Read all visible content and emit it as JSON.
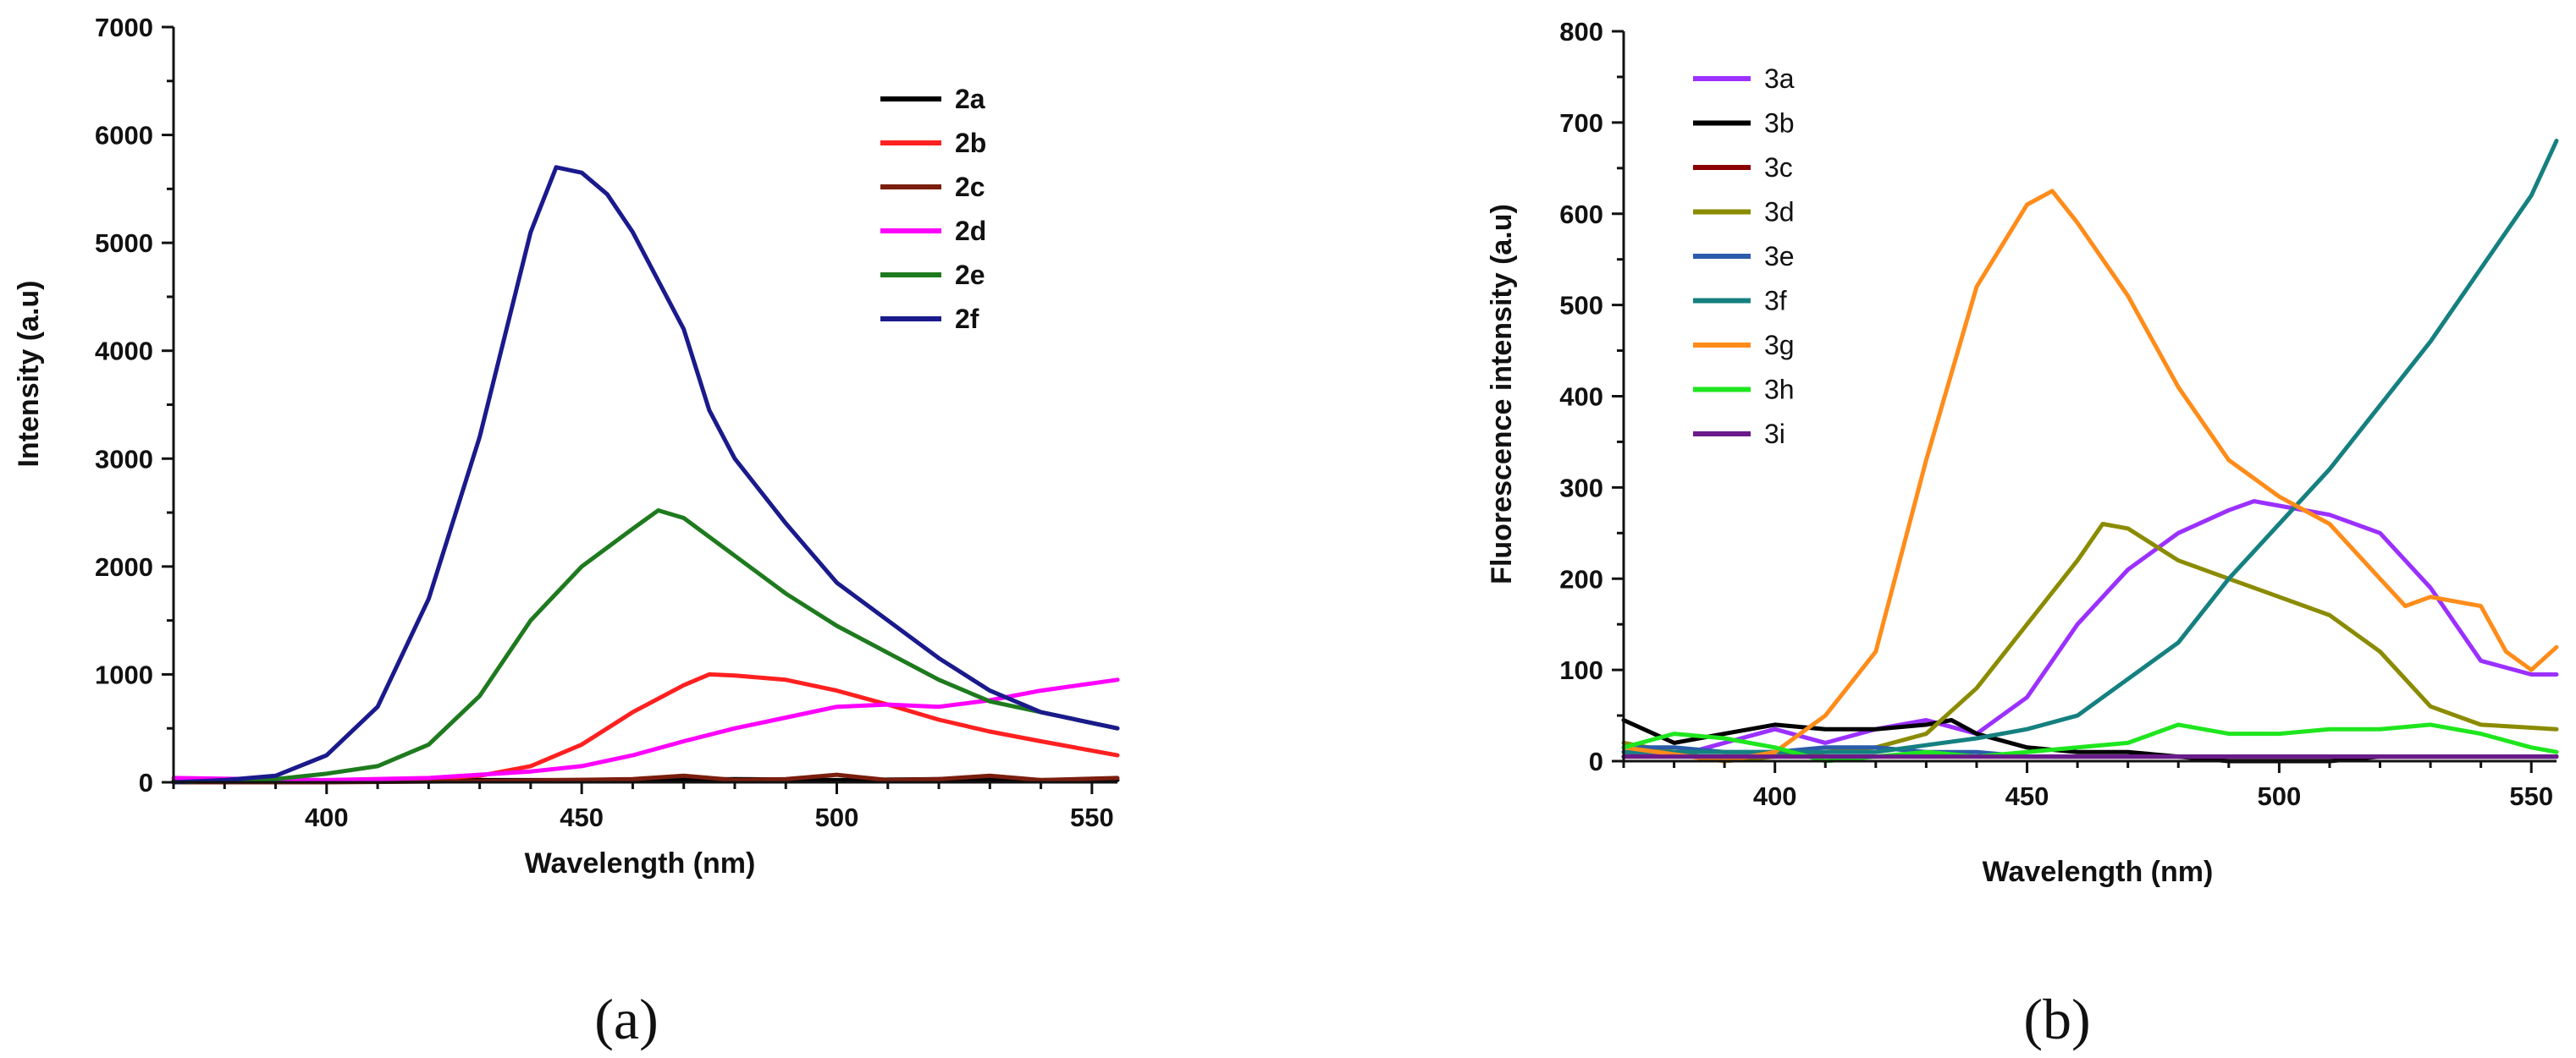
{
  "figure": {
    "panel_a_label": "(a)",
    "panel_b_label": "(b)"
  },
  "chart_data": [
    {
      "type": "line",
      "panel": "a",
      "title": "",
      "xlabel": "Wavelength (nm)",
      "ylabel": "Intensity (a.u)",
      "xlim": [
        370,
        555
      ],
      "ylim": [
        0,
        7000
      ],
      "xticks": [
        400,
        450,
        500,
        550
      ],
      "yticks": [
        0,
        1000,
        2000,
        3000,
        4000,
        5000,
        6000,
        7000
      ],
      "legend_position": "top-right",
      "series": [
        {
          "name": "2a",
          "color": "#000000",
          "x": [
            370,
            400,
            430,
            460,
            480,
            500,
            520,
            540,
            555
          ],
          "y": [
            10,
            10,
            20,
            20,
            30,
            20,
            30,
            20,
            20
          ]
        },
        {
          "name": "2b",
          "color": "#ff2020",
          "x": [
            370,
            400,
            420,
            430,
            440,
            450,
            460,
            470,
            475,
            480,
            490,
            500,
            510,
            520,
            530,
            540,
            555
          ],
          "y": [
            0,
            10,
            30,
            60,
            150,
            350,
            650,
            900,
            1000,
            990,
            950,
            850,
            720,
            580,
            470,
            380,
            250
          ]
        },
        {
          "name": "2c",
          "color": "#7a1e0e",
          "x": [
            370,
            400,
            430,
            460,
            470,
            480,
            490,
            500,
            510,
            520,
            530,
            540,
            555
          ],
          "y": [
            0,
            0,
            10,
            30,
            60,
            20,
            30,
            70,
            20,
            30,
            60,
            20,
            40
          ]
        },
        {
          "name": "2d",
          "color": "#ff00ff",
          "x": [
            370,
            400,
            420,
            440,
            450,
            460,
            470,
            480,
            490,
            500,
            510,
            520,
            530,
            540,
            555
          ],
          "y": [
            40,
            20,
            40,
            100,
            150,
            250,
            380,
            500,
            600,
            700,
            720,
            700,
            760,
            850,
            950
          ]
        },
        {
          "name": "2e",
          "color": "#1e7a1e",
          "x": [
            370,
            390,
            400,
            410,
            420,
            430,
            440,
            450,
            460,
            465,
            470,
            480,
            490,
            500,
            510,
            520,
            530,
            540,
            555
          ],
          "y": [
            0,
            30,
            80,
            150,
            350,
            800,
            1500,
            2000,
            2350,
            2520,
            2450,
            2100,
            1750,
            1450,
            1200,
            950,
            750,
            650,
            500
          ]
        },
        {
          "name": "2f",
          "color": "#1a1a8c",
          "x": [
            370,
            380,
            390,
            400,
            410,
            420,
            430,
            440,
            445,
            450,
            455,
            460,
            470,
            475,
            480,
            490,
            500,
            510,
            520,
            530,
            540,
            555
          ],
          "y": [
            0,
            20,
            60,
            250,
            700,
            1700,
            3200,
            5100,
            5700,
            5650,
            5450,
            5100,
            4200,
            3450,
            3000,
            2400,
            1850,
            1500,
            1150,
            850,
            650,
            500
          ]
        }
      ]
    },
    {
      "type": "line",
      "panel": "b",
      "title": "",
      "xlabel": "Wavelength (nm)",
      "ylabel": "Fluorescence intensity (a.u)",
      "xlim": [
        370,
        555
      ],
      "ylim": [
        0,
        800
      ],
      "xticks": [
        400,
        450,
        500,
        550
      ],
      "yticks": [
        0,
        100,
        200,
        300,
        400,
        500,
        600,
        700,
        800
      ],
      "legend_position": "top-left",
      "series": [
        {
          "name": "3a",
          "color": "#9b30ff",
          "x": [
            370,
            380,
            390,
            400,
            410,
            420,
            430,
            440,
            450,
            460,
            470,
            480,
            490,
            495,
            500,
            510,
            520,
            530,
            540,
            550,
            555
          ],
          "y": [
            10,
            5,
            20,
            35,
            20,
            35,
            45,
            30,
            70,
            150,
            210,
            250,
            275,
            285,
            280,
            270,
            250,
            190,
            110,
            95,
            95
          ]
        },
        {
          "name": "3b",
          "color": "#000000",
          "x": [
            370,
            380,
            390,
            400,
            410,
            420,
            430,
            435,
            440,
            450,
            460,
            470,
            480,
            490,
            500,
            510,
            520,
            530,
            540,
            555
          ],
          "y": [
            45,
            20,
            30,
            40,
            35,
            35,
            40,
            45,
            30,
            15,
            10,
            10,
            5,
            0,
            0,
            0,
            5,
            5,
            5,
            5
          ]
        },
        {
          "name": "3c",
          "color": "#8b0000",
          "x": [
            370,
            400,
            430,
            460,
            490,
            520,
            555
          ],
          "y": [
            5,
            5,
            5,
            5,
            5,
            5,
            5
          ]
        },
        {
          "name": "3d",
          "color": "#8b8b00",
          "x": [
            370,
            380,
            390,
            400,
            410,
            420,
            430,
            440,
            450,
            460,
            465,
            470,
            480,
            490,
            500,
            510,
            520,
            530,
            540,
            555
          ],
          "y": [
            20,
            10,
            0,
            5,
            10,
            15,
            30,
            80,
            150,
            220,
            260,
            255,
            220,
            200,
            180,
            160,
            120,
            60,
            40,
            35
          ]
        },
        {
          "name": "3e",
          "color": "#2a5caa",
          "x": [
            370,
            380,
            390,
            400,
            410,
            420,
            430,
            440,
            450,
            460,
            470,
            480,
            490,
            500,
            510,
            520,
            530,
            540,
            555
          ],
          "y": [
            15,
            15,
            10,
            10,
            15,
            15,
            10,
            10,
            5,
            5,
            5,
            5,
            5,
            5,
            5,
            5,
            5,
            5,
            5
          ]
        },
        {
          "name": "3f",
          "color": "#158080",
          "x": [
            370,
            400,
            420,
            440,
            450,
            460,
            470,
            480,
            490,
            500,
            510,
            520,
            530,
            540,
            550,
            555
          ],
          "y": [
            10,
            10,
            10,
            25,
            35,
            50,
            90,
            130,
            200,
            260,
            320,
            390,
            460,
            540,
            620,
            680
          ]
        },
        {
          "name": "3g",
          "color": "#ff8c1a",
          "x": [
            370,
            390,
            400,
            410,
            420,
            430,
            440,
            450,
            455,
            460,
            470,
            480,
            490,
            500,
            510,
            520,
            525,
            530,
            540,
            545,
            550,
            555
          ],
          "y": [
            15,
            0,
            10,
            50,
            120,
            330,
            520,
            610,
            625,
            590,
            510,
            410,
            330,
            290,
            260,
            200,
            170,
            180,
            170,
            120,
            100,
            125
          ]
        },
        {
          "name": "3h",
          "color": "#1ee61e",
          "x": [
            370,
            380,
            390,
            400,
            410,
            420,
            430,
            440,
            450,
            460,
            470,
            480,
            490,
            500,
            510,
            520,
            530,
            540,
            550,
            555
          ],
          "y": [
            15,
            30,
            25,
            15,
            0,
            5,
            10,
            5,
            10,
            15,
            20,
            40,
            30,
            30,
            35,
            35,
            40,
            30,
            15,
            10
          ]
        },
        {
          "name": "3i",
          "color": "#6a1a8a",
          "x": [
            370,
            400,
            430,
            460,
            490,
            520,
            555
          ],
          "y": [
            5,
            5,
            5,
            5,
            5,
            5,
            5
          ]
        }
      ]
    }
  ]
}
